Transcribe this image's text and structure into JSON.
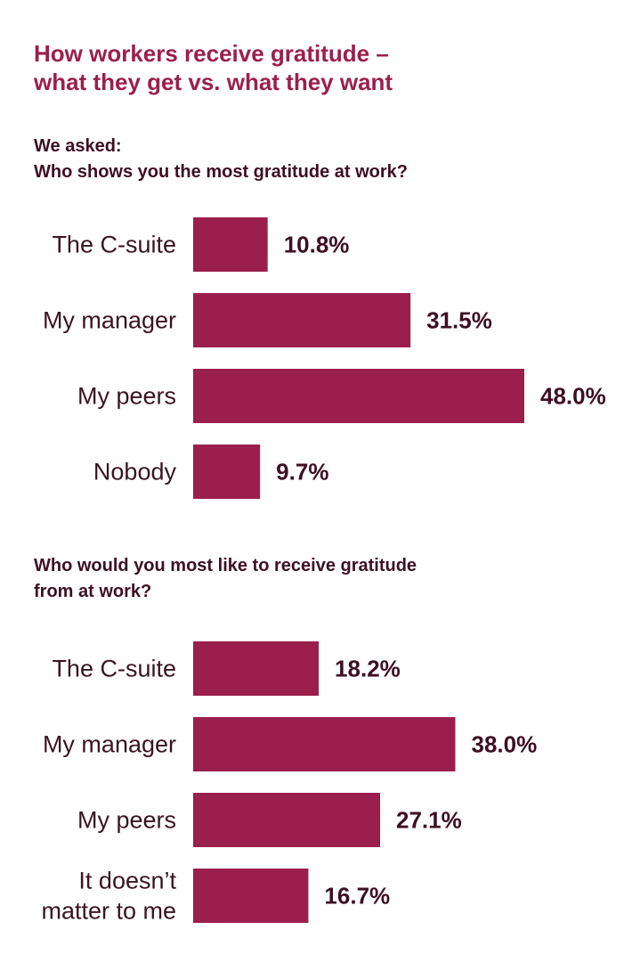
{
  "title_line1": "How workers receive gratitude –",
  "title_line2": "what they get vs. what they want",
  "q1_line1": "We asked:",
  "q1_line2": "Who shows you the most gratitude at work?",
  "q2_line1": "Who would you most like to receive gratitude",
  "q2_line2": "from at work?",
  "colors": {
    "bar": "#9b1f4c",
    "title": "#9b1f4c",
    "text": "#3d0f22"
  },
  "chart_data": [
    {
      "type": "bar",
      "orientation": "horizontal",
      "title": "Who shows you the most gratitude at work?",
      "categories": [
        [
          "The C-suite"
        ],
        [
          "My manager"
        ],
        [
          "My peers"
        ],
        [
          "Nobody"
        ]
      ],
      "values": [
        10.8,
        31.5,
        48.0,
        9.7
      ],
      "value_labels": [
        "10.8%",
        "31.5%",
        "48.0%",
        "9.7%"
      ],
      "xlim": [
        0,
        48.0
      ],
      "grid": false
    },
    {
      "type": "bar",
      "orientation": "horizontal",
      "title": "Who would you most like to receive gratitude from at work?",
      "categories": [
        [
          "The C-suite"
        ],
        [
          "My manager"
        ],
        [
          "My peers"
        ],
        [
          "It doesn’t",
          "matter to me"
        ]
      ],
      "values": [
        18.2,
        38.0,
        27.1,
        16.7
      ],
      "value_labels": [
        "18.2%",
        "38.0%",
        "27.1%",
        "16.7%"
      ],
      "xlim": [
        0,
        48.0
      ],
      "grid": false
    }
  ]
}
